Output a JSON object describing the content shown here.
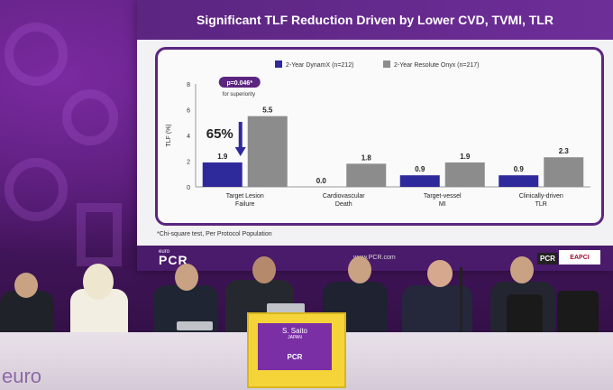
{
  "slide": {
    "title": "Significant TLF Reduction Driven by Lower CVD, TVMI, TLR",
    "footnote": "*Chi-square test, Per Protocol Population",
    "url": "www.PCR.com",
    "footer_logo": "PCR",
    "footer_year": "2024",
    "footer_euro": "euro",
    "pcr_badge": "PCR",
    "eapci_label": "EAPCI"
  },
  "chart_data": {
    "type": "bar",
    "categories": [
      "Target Lesion Failure",
      "Cardiovascular Death",
      "Target-vessel MI",
      "Clinically-driven TLR"
    ],
    "category_lines": [
      [
        "Target Lesion",
        "Failure"
      ],
      [
        "Cardiovascular",
        "Death"
      ],
      [
        "Target-vessel",
        "MI"
      ],
      [
        "Clinically-driven",
        "TLR"
      ]
    ],
    "series": [
      {
        "name": "2-Year DynamX (n=212)",
        "values": [
          1.9,
          0.0,
          0.9,
          0.9
        ],
        "labels": [
          "1.9",
          "0.0",
          "0.9",
          "0.9"
        ],
        "color": "#2e2a9c"
      },
      {
        "name": "2-Year Resolute Onyx (n=217)",
        "values": [
          5.5,
          1.8,
          1.9,
          2.3
        ],
        "labels": [
          "5.5",
          "1.8",
          "1.9",
          "2.3"
        ],
        "color": "#8c8c8c"
      }
    ],
    "ylabel": "TLF (%)",
    "ylim": [
      0,
      8
    ],
    "yticks": [
      "0",
      "2",
      "4",
      "6",
      "8"
    ],
    "yticks_values": [
      0,
      2,
      4,
      6,
      8
    ],
    "annotation_pvalue": "p=0.046*",
    "annotation_sub": "for superiority",
    "annotation_reduction": "65%",
    "legend_position": "top"
  },
  "podium": {
    "name": "S. Saito",
    "country": "JAPAN",
    "badge": "PCR"
  },
  "background": {
    "euro_text": "euro"
  }
}
